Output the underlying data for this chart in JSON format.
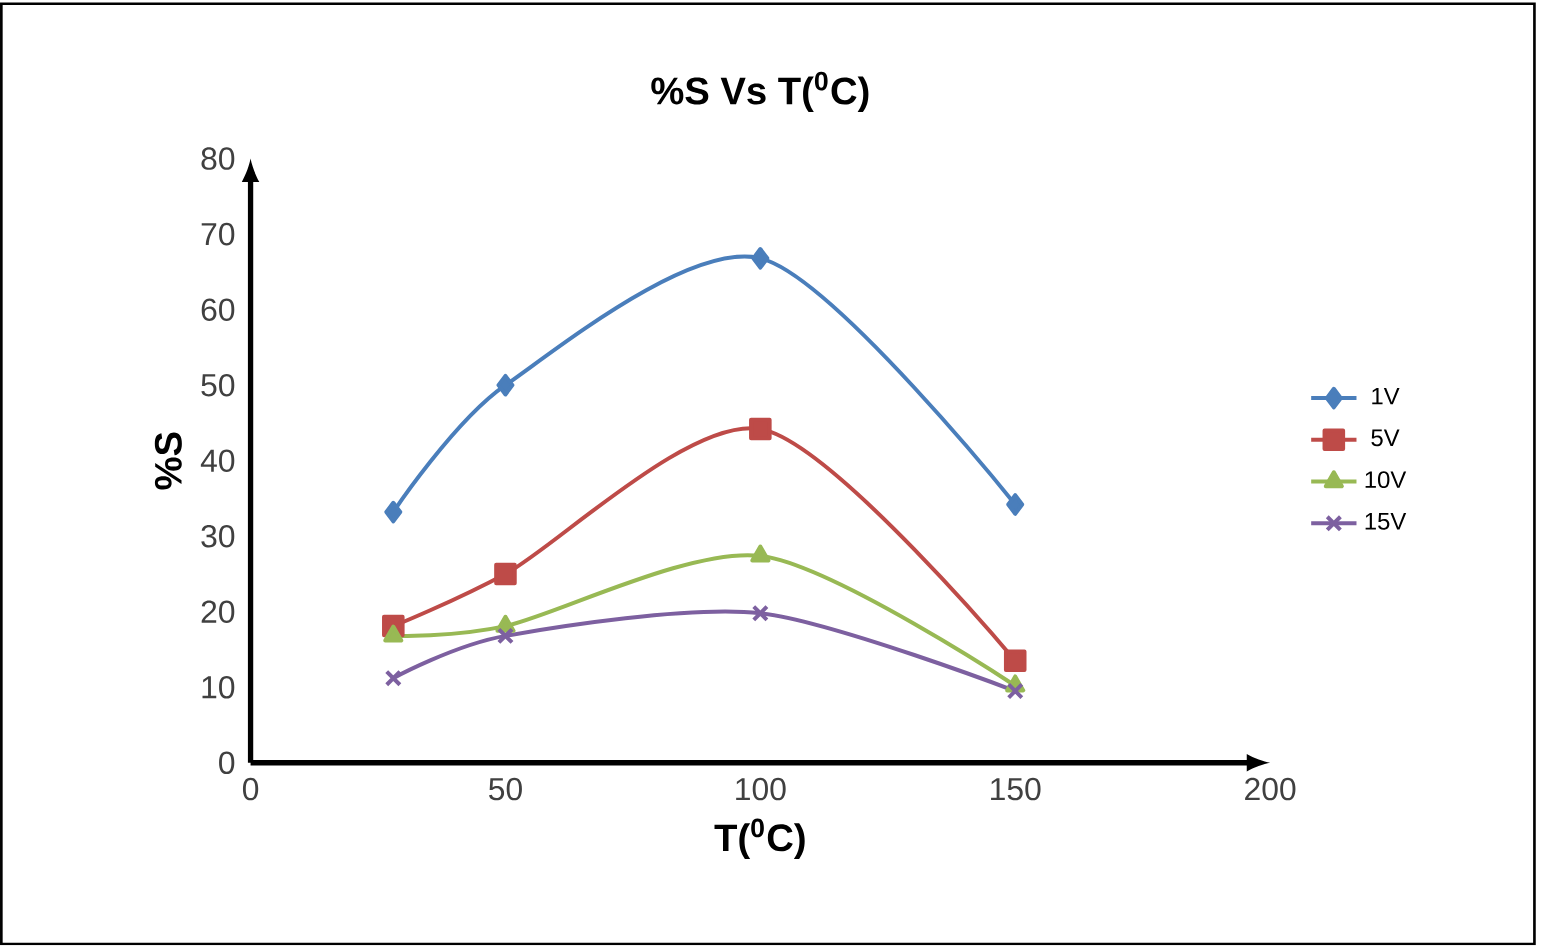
{
  "chart_data": {
    "type": "line",
    "title": "%S Vs T($^{0}$C)",
    "xlabel": "T($^{0}$C)",
    "ylabel": "%S",
    "x": [
      28,
      50,
      100,
      150
    ],
    "series": [
      {
        "name": "1V",
        "color": "#4a7ebb",
        "marker": "diamond",
        "values": [
          33.2,
          50,
          66.8,
          34.2
        ]
      },
      {
        "name": "5V",
        "color": "#be4b48",
        "marker": "square",
        "values": [
          18.1,
          25,
          44.2,
          13.5
        ]
      },
      {
        "name": "10V",
        "color": "#98b954",
        "marker": "triangle",
        "values": [
          16.8,
          18.1,
          27.4,
          10.2
        ]
      },
      {
        "name": "15V",
        "color": "#7d60a0",
        "marker": "cross",
        "values": [
          11.2,
          16.8,
          19.8,
          9.5
        ]
      }
    ],
    "xlim": [
      0,
      200
    ],
    "xticks": [
      0,
      50,
      100,
      150,
      200
    ],
    "ylim": [
      0,
      80
    ],
    "yticks": [
      0,
      10,
      20,
      30,
      40,
      50,
      60,
      70,
      80
    ],
    "grid": false,
    "legend": "right"
  }
}
